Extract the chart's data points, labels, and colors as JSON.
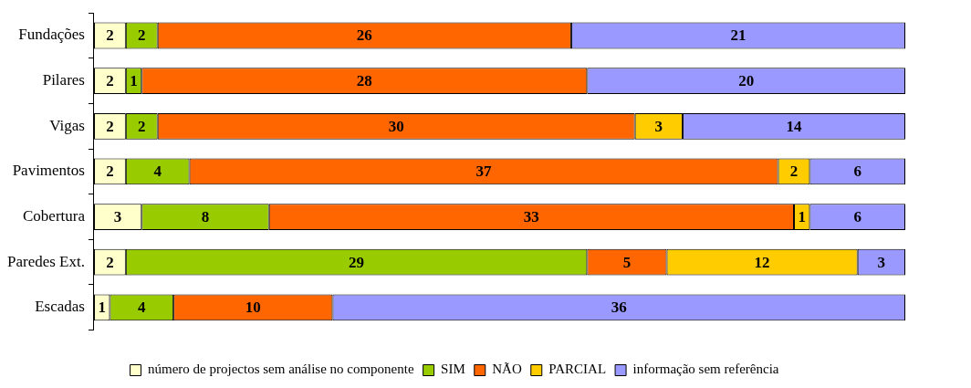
{
  "chart_data": {
    "type": "bar",
    "orientation": "horizontal",
    "stacked": true,
    "data_labels": true,
    "legend": "bottom",
    "categories": [
      "Fundações",
      "Pilares",
      "Vigas",
      "Pavimentos",
      "Cobertura",
      "Paredes Ext.",
      "Escadas"
    ],
    "series": [
      {
        "name": "número de projectos sem análise no componente",
        "color": "#ffffcc",
        "values": [
          2,
          2,
          2,
          2,
          3,
          2,
          1
        ]
      },
      {
        "name": "SIM",
        "color": "#99cc00",
        "values": [
          2,
          1,
          2,
          4,
          8,
          29,
          4
        ]
      },
      {
        "name": "NÃO",
        "color": "#ff6600",
        "values": [
          26,
          28,
          30,
          37,
          33,
          5,
          10
        ]
      },
      {
        "name": "PARCIAL",
        "color": "#ffcc00",
        "values": [
          null,
          null,
          3,
          2,
          1,
          12,
          null
        ]
      },
      {
        "name": "informação sem referência",
        "color": "#9999ff",
        "values": [
          21,
          20,
          14,
          6,
          6,
          3,
          36
        ]
      }
    ]
  }
}
